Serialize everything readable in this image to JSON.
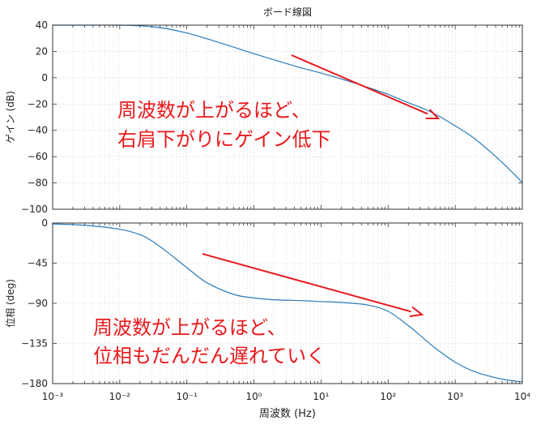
{
  "title": "ボード線図",
  "chart_data": [
    {
      "type": "line",
      "panel": "gain",
      "ylabel": "ゲイン (dB)",
      "xscale": "log",
      "xlim": [
        0.001,
        10000
      ],
      "ylim": [
        -100,
        40
      ],
      "yticks": [
        "40",
        "20",
        "0",
        "−20",
        "−40",
        "−60",
        "−80",
        "−100"
      ],
      "grid": true,
      "x": [
        0.001,
        0.003,
        0.01,
        0.02,
        0.03,
        0.05,
        0.1,
        0.2,
        0.5,
        1,
        2,
        5,
        10,
        20,
        50,
        100,
        200,
        300,
        500,
        1000,
        2000,
        5000,
        10000
      ],
      "values": [
        40,
        40,
        40,
        39.5,
        38.8,
        37.3,
        34,
        29.6,
        23.2,
        18.3,
        13.6,
        7.6,
        3.6,
        -0.9,
        -7.4,
        -12.7,
        -19,
        -22.4,
        -27.6,
        -36.6,
        -46.8,
        -64.4,
        -79.7
      ],
      "annotation": "周波数が上がるほど、\n右肩下がりにゲイン低下"
    },
    {
      "type": "line",
      "panel": "phase",
      "ylabel": "位相 (deg)",
      "xlabel": "周波数 (Hz)",
      "xscale": "log",
      "xlim": [
        0.001,
        10000
      ],
      "ylim": [
        -180,
        0
      ],
      "yticks": [
        "0",
        "−45",
        "−90",
        "−135",
        "−180"
      ],
      "xticks": [
        "10⁻³",
        "10⁻²",
        "10⁻¹",
        "10⁰",
        "10¹",
        "10²",
        "10³",
        "10⁴"
      ],
      "grid": true,
      "x": [
        0.001,
        0.003,
        0.01,
        0.02,
        0.03,
        0.05,
        0.1,
        0.2,
        0.5,
        1,
        2,
        5,
        10,
        20,
        50,
        100,
        200,
        300,
        500,
        1000,
        2000,
        5000,
        10000
      ],
      "values": [
        -1,
        -2.5,
        -7,
        -13,
        -20,
        -32,
        -50,
        -67,
        -80,
        -84,
        -86,
        -87,
        -88,
        -89,
        -92,
        -99,
        -115,
        -126,
        -140,
        -156,
        -167,
        -175,
        -178
      ],
      "annotation": "周波数が上がるほど、\n位相もだんだん遅れていく"
    }
  ],
  "colors": {
    "line": "#2b7bba",
    "arrow": "#e8191c",
    "note": "#e8191c",
    "grid": "#d6d6d6"
  }
}
